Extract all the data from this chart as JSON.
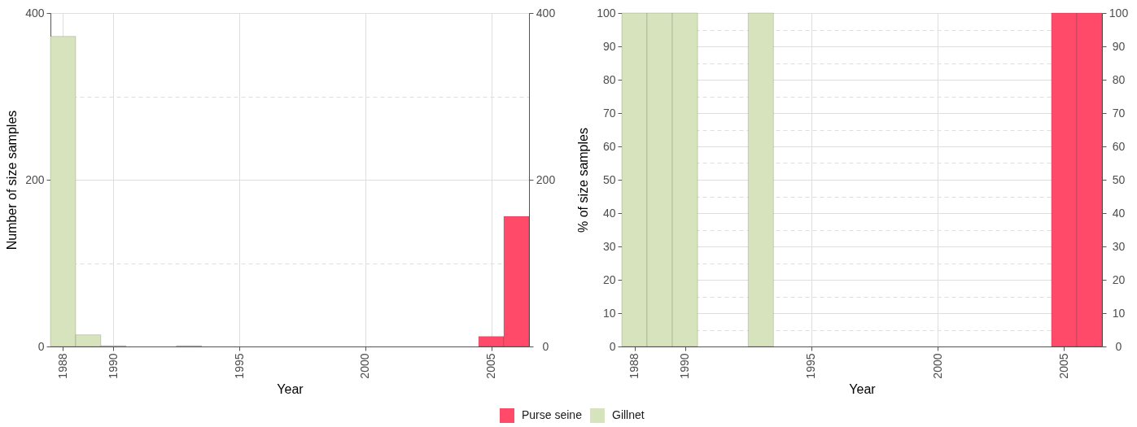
{
  "chart_data": [
    {
      "type": "bar",
      "xlabel": "Year",
      "ylabel": "Number of size samples",
      "x": [
        1988,
        1989,
        1990,
        1993,
        2005,
        2006
      ],
      "series": [
        {
          "name": "Purse seine",
          "color": "#ff4a6a",
          "values": [
            null,
            null,
            null,
            null,
            12,
            156
          ]
        },
        {
          "name": "Gillnet",
          "color": "#d6e3bd",
          "values": [
            372,
            14,
            1,
            1,
            null,
            null
          ]
        }
      ],
      "xlim": [
        1987.5,
        2006.5
      ],
      "xticks": [
        1988,
        1990,
        1995,
        2000,
        2005
      ],
      "ylim": [
        0,
        400
      ],
      "yticks": [
        0,
        {
          "value": 100,
          "label": null
        },
        200,
        {
          "value": 300,
          "label": null
        },
        400
      ],
      "y2lim": [
        0,
        400
      ],
      "y2ticks": [
        0,
        200,
        400
      ],
      "grid": true,
      "legend": "bottom"
    },
    {
      "type": "bar",
      "xlabel": "Year",
      "ylabel": "% of size samples",
      "x": [
        1988,
        1989,
        1990,
        1993,
        2005,
        2006
      ],
      "series": [
        {
          "name": "Purse seine",
          "color": "#ff4a6a",
          "values": [
            null,
            null,
            null,
            null,
            100,
            100
          ]
        },
        {
          "name": "Gillnet",
          "color": "#d6e3bd",
          "values": [
            100,
            100,
            100,
            100,
            null,
            null
          ]
        }
      ],
      "xlim": [
        1987.5,
        2006.5
      ],
      "xticks": [
        1988,
        1990,
        1995,
        2000,
        2005
      ],
      "ylim": [
        0,
        100
      ],
      "yticks": [
        0,
        {
          "value": 5,
          "label": null
        },
        10,
        {
          "value": 15,
          "label": null
        },
        20,
        {
          "value": 25,
          "label": null
        },
        30,
        {
          "value": 35,
          "label": null
        },
        40,
        {
          "value": 45,
          "label": null
        },
        50,
        {
          "value": 55,
          "label": null
        },
        60,
        {
          "value": 65,
          "label": null
        },
        70,
        {
          "value": 75,
          "label": null
        },
        80,
        {
          "value": 85,
          "label": null
        },
        90,
        {
          "value": 95,
          "label": null
        },
        100
      ],
      "y2lim": [
        0,
        100
      ],
      "y2ticks": [
        0,
        10,
        20,
        30,
        40,
        50,
        60,
        70,
        80,
        90,
        100
      ],
      "grid": true
    }
  ]
}
